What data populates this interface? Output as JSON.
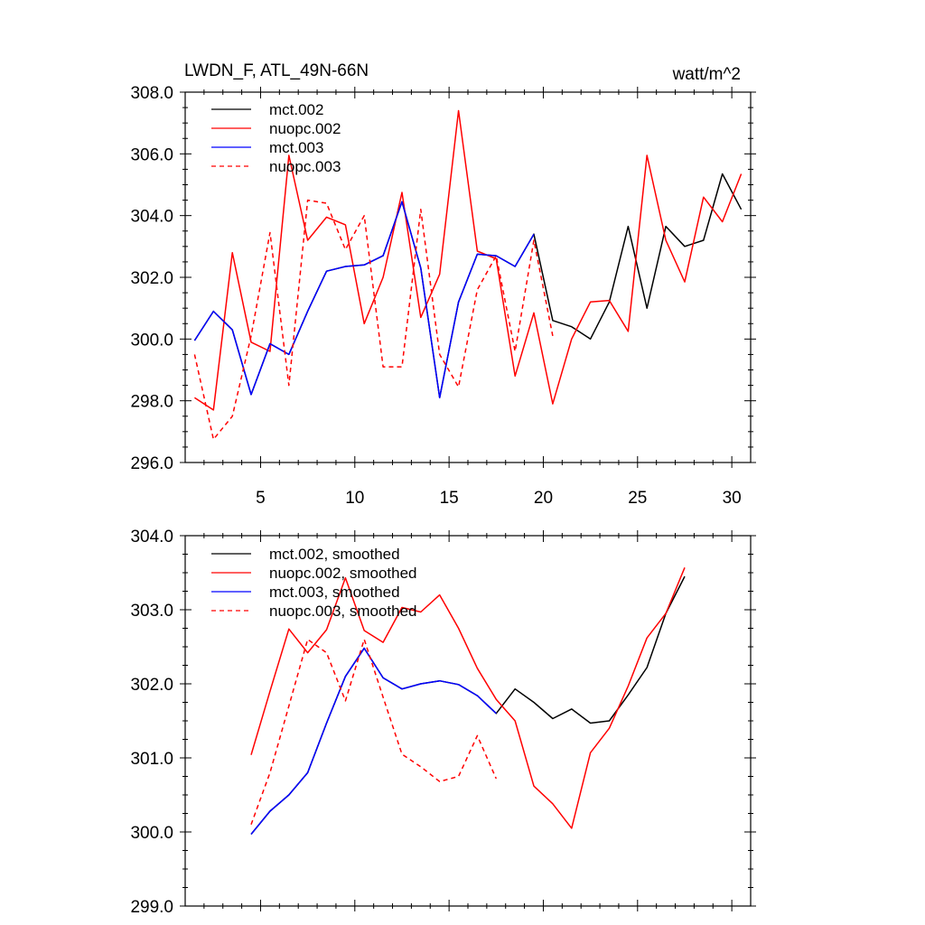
{
  "chart_data": [
    {
      "type": "line",
      "title_left": "LWDN_F, ATL_49N-66N",
      "title_right": "watt/m^2",
      "xlim": [
        1,
        31
      ],
      "ylim": [
        296,
        308
      ],
      "yticks": [
        296,
        298,
        300,
        302,
        304,
        306,
        308
      ],
      "ytick_labels": [
        "296.0",
        "298.0",
        "300.0",
        "302.0",
        "304.0",
        "306.0",
        "308.0"
      ],
      "xticks": [
        5,
        10,
        15,
        20,
        25,
        30
      ],
      "xtick_labels": [
        "5",
        "10",
        "15",
        "20",
        "25",
        "30"
      ],
      "series": [
        {
          "name": "mct.002",
          "color": "#000000",
          "dash": false,
          "x": [
            1.5,
            2.5,
            3.5,
            4.5,
            5.5,
            6.5,
            7.5,
            8.5,
            9.5,
            10.5,
            11.5,
            12.5,
            13.5,
            14.5,
            15.5,
            16.5,
            17.5,
            18.5,
            19.5,
            20.5,
            21.5,
            22.5,
            23.5,
            24.5,
            25.5,
            26.5,
            27.5,
            28.5,
            29.5,
            30.5
          ],
          "values": [
            299.95,
            300.9,
            300.3,
            298.2,
            299.85,
            299.5,
            300.9,
            302.2,
            302.35,
            302.4,
            302.7,
            304.45,
            302.3,
            298.1,
            301.2,
            302.75,
            302.7,
            302.35,
            303.4,
            300.6,
            300.4,
            300.0,
            301.2,
            303.65,
            301.0,
            303.65,
            303.0,
            303.2,
            305.35,
            304.2
          ]
        },
        {
          "name": "nuopc.002",
          "color": "#ff0000",
          "dash": false,
          "x": [
            1.5,
            2.5,
            3.5,
            4.5,
            5.5,
            6.5,
            7.5,
            8.5,
            9.5,
            10.5,
            11.5,
            12.5,
            13.5,
            14.5,
            15.5,
            16.5,
            17.5,
            18.5,
            19.5,
            20.5,
            21.5,
            22.5,
            23.5,
            24.5,
            25.5,
            26.5,
            27.5,
            28.5,
            29.5,
            30.5
          ],
          "values": [
            298.1,
            297.7,
            302.8,
            299.9,
            299.6,
            305.95,
            303.2,
            303.95,
            303.7,
            300.5,
            302.0,
            304.75,
            300.7,
            302.1,
            307.4,
            302.85,
            302.6,
            298.8,
            300.85,
            297.9,
            300.0,
            301.2,
            301.25,
            300.25,
            305.95,
            303.2,
            301.85,
            304.6,
            303.8,
            305.35
          ]
        },
        {
          "name": "mct.003",
          "color": "#0000ff",
          "dash": false,
          "x": [
            1.5,
            2.5,
            3.5,
            4.5,
            5.5,
            6.5,
            7.5,
            8.5,
            9.5,
            10.5,
            11.5,
            12.5,
            13.5,
            14.5,
            15.5,
            16.5,
            17.5,
            18.5,
            19.5
          ],
          "values": [
            299.95,
            300.9,
            300.3,
            298.2,
            299.85,
            299.5,
            300.9,
            302.2,
            302.35,
            302.4,
            302.7,
            304.45,
            302.3,
            298.1,
            301.2,
            302.75,
            302.7,
            302.35,
            303.4
          ]
        },
        {
          "name": "nuopc.003",
          "color": "#ff0000",
          "dash": true,
          "x": [
            1.5,
            2.5,
            3.5,
            4.5,
            5.5,
            6.5,
            7.5,
            8.5,
            9.5,
            10.5,
            11.5,
            12.5,
            13.5,
            14.5,
            15.5,
            16.5,
            17.5,
            18.5,
            19.5,
            20.5
          ],
          "values": [
            299.5,
            296.75,
            297.5,
            300.1,
            303.45,
            298.5,
            304.5,
            304.4,
            302.9,
            304.0,
            299.1,
            299.1,
            304.2,
            299.5,
            298.45,
            301.6,
            302.7,
            299.6,
            303.2,
            300.1
          ]
        }
      ]
    },
    {
      "type": "line",
      "xlim": [
        1,
        31
      ],
      "ylim": [
        299,
        304
      ],
      "yticks": [
        299,
        300,
        301,
        302,
        303,
        304
      ],
      "ytick_labels": [
        "299.0",
        "300.0",
        "301.0",
        "302.0",
        "303.0",
        "304.0"
      ],
      "xticks": [
        5,
        10,
        15,
        20,
        25,
        30
      ],
      "series": [
        {
          "name": "mct.002, smoothed",
          "color": "#000000",
          "dash": false,
          "x": [
            4.5,
            5.5,
            6.5,
            7.5,
            8.5,
            9.5,
            10.5,
            11.5,
            12.5,
            13.5,
            14.5,
            15.5,
            16.5,
            17.5,
            18.5,
            19.5,
            20.5,
            21.5,
            22.5,
            23.5,
            24.5,
            25.5,
            26.5,
            27.5
          ],
          "values": [
            299.97,
            300.28,
            300.5,
            300.8,
            301.47,
            302.1,
            302.48,
            302.08,
            301.93,
            302.0,
            302.04,
            301.99,
            301.84,
            301.6,
            301.93,
            301.75,
            301.53,
            301.66,
            301.47,
            301.5,
            301.85,
            302.22,
            302.95,
            303.45
          ]
        },
        {
          "name": "nuopc.002, smoothed",
          "color": "#ff0000",
          "dash": false,
          "x": [
            4.5,
            5.5,
            6.5,
            7.5,
            8.5,
            9.5,
            10.5,
            11.5,
            12.5,
            13.5,
            14.5,
            15.5,
            16.5,
            17.5,
            18.5,
            19.5,
            20.5,
            21.5,
            22.5,
            23.5,
            24.5,
            25.5,
            26.5,
            27.5
          ],
          "values": [
            301.04,
            301.9,
            302.74,
            302.42,
            302.73,
            303.43,
            302.72,
            302.56,
            303.03,
            302.97,
            303.2,
            302.75,
            302.21,
            301.79,
            301.5,
            300.62,
            300.38,
            300.05,
            301.07,
            301.4,
            301.97,
            302.62,
            302.95,
            303.57
          ]
        },
        {
          "name": "mct.003, smoothed",
          "color": "#0000ff",
          "dash": false,
          "x": [
            4.5,
            5.5,
            6.5,
            7.5,
            8.5,
            9.5,
            10.5,
            11.5,
            12.5,
            13.5,
            14.5,
            15.5,
            16.5,
            17.5
          ],
          "values": [
            299.97,
            300.28,
            300.5,
            300.8,
            301.47,
            302.1,
            302.48,
            302.08,
            301.93,
            302.0,
            302.04,
            301.99,
            301.84,
            301.6
          ]
        },
        {
          "name": "nuopc.003, smoothed",
          "color": "#ff0000",
          "dash": true,
          "x": [
            4.5,
            5.5,
            6.5,
            7.5,
            8.5,
            9.5,
            10.5,
            11.5,
            12.5,
            13.5,
            14.5,
            15.5,
            16.5,
            17.5
          ],
          "values": [
            300.1,
            300.8,
            301.7,
            302.6,
            302.42,
            301.77,
            302.6,
            301.82,
            301.05,
            300.88,
            300.68,
            300.75,
            301.3,
            300.72
          ]
        }
      ]
    }
  ]
}
